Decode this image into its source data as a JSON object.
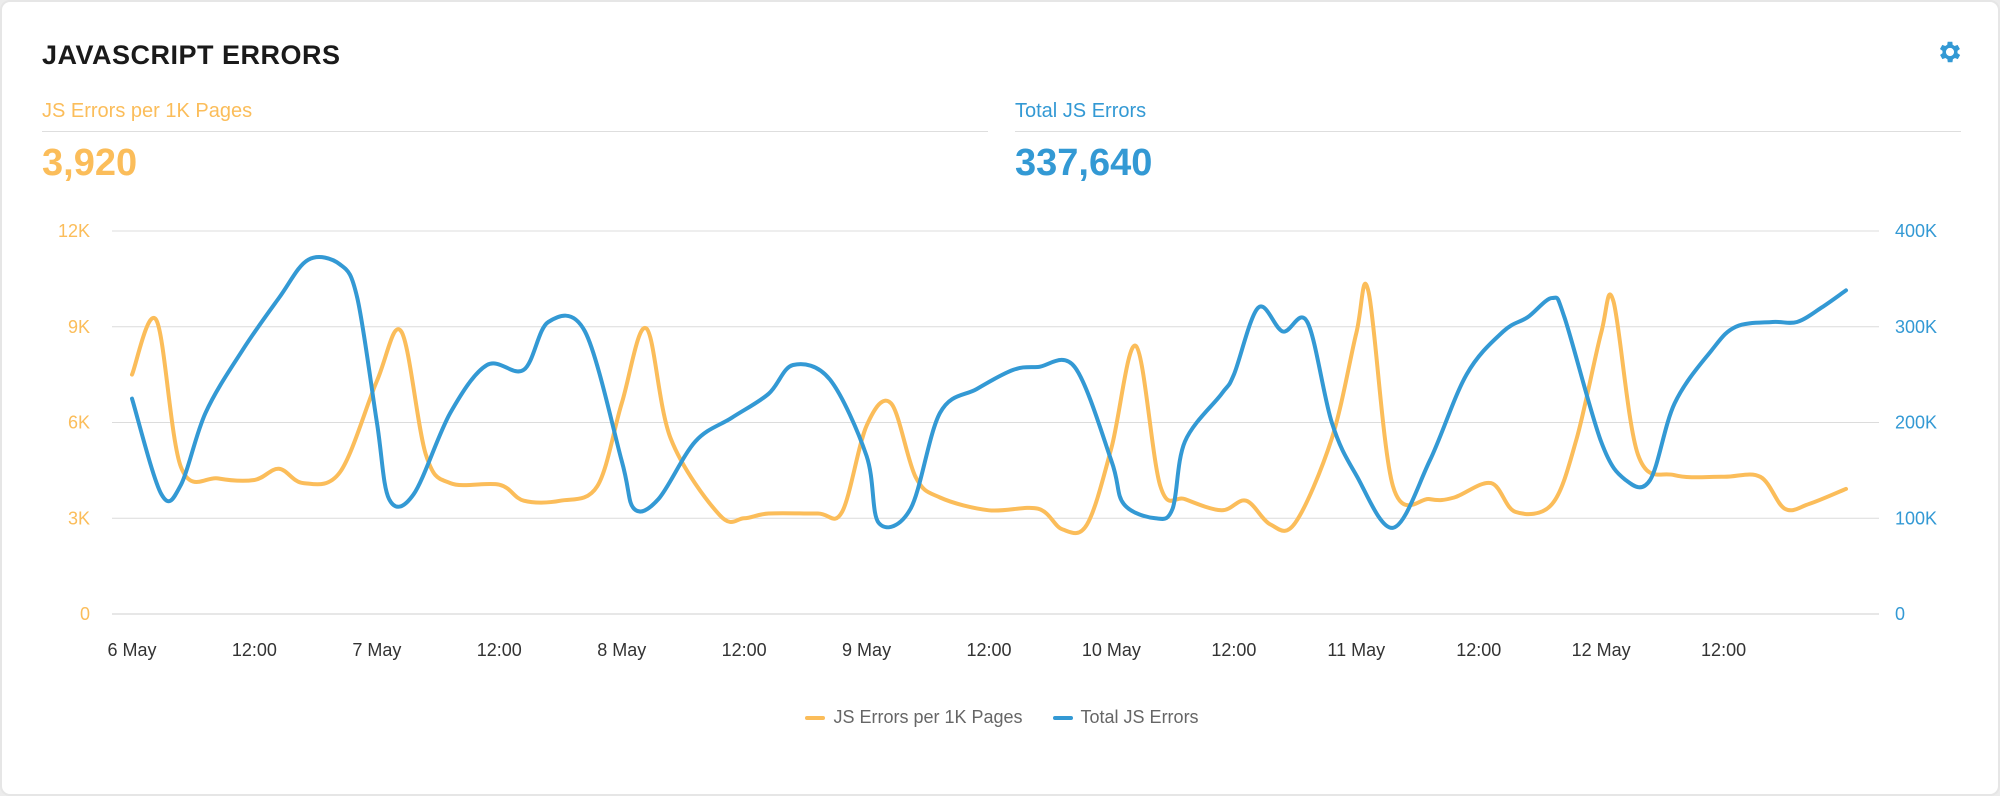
{
  "panel": {
    "title": "JAVASCRIPT ERRORS",
    "settings_icon": "gear-icon"
  },
  "metrics": [
    {
      "label": "JS Errors per 1K Pages",
      "value": "3,920",
      "color": "#fbbd5a"
    },
    {
      "label": "Total JS Errors",
      "value": "337,640",
      "color": "#3399d4"
    }
  ],
  "chart_data": {
    "type": "line",
    "x_ticks": [
      "6 May",
      "12:00",
      "7 May",
      "12:00",
      "8 May",
      "12:00",
      "9 May",
      "12:00",
      "10 May",
      "12:00",
      "11 May",
      "12:00",
      "12 May",
      "12:00"
    ],
    "x_range_days": [
      0,
      7
    ],
    "y_left": {
      "ticks": [
        "0",
        "3K",
        "6K",
        "9K",
        "12K"
      ],
      "ylim": [
        0,
        12000
      ],
      "color": "#fbbd5a"
    },
    "y_right": {
      "ticks": [
        "0",
        "100K",
        "200K",
        "300K",
        "400K"
      ],
      "ylim": [
        0,
        400000
      ],
      "color": "#3399d4"
    },
    "grid": true,
    "legend_position": "bottom",
    "series": [
      {
        "name": "JS Errors per 1K Pages",
        "axis": "left",
        "color": "#fbbd5a",
        "points": [
          [
            0,
            7500
          ],
          [
            0.1,
            9200
          ],
          [
            0.2,
            4600
          ],
          [
            0.35,
            4250
          ],
          [
            0.5,
            4200
          ],
          [
            0.6,
            4550
          ],
          [
            0.7,
            4100
          ],
          [
            0.85,
            4450
          ],
          [
            1.0,
            7300
          ],
          [
            1.1,
            8850
          ],
          [
            1.2,
            5000
          ],
          [
            1.3,
            4100
          ],
          [
            1.5,
            4050
          ],
          [
            1.6,
            3550
          ],
          [
            1.75,
            3550
          ],
          [
            1.9,
            4000
          ],
          [
            2.0,
            6600
          ],
          [
            2.1,
            8950
          ],
          [
            2.2,
            5500
          ],
          [
            2.4,
            3100
          ],
          [
            2.5,
            3000
          ],
          [
            2.6,
            3150
          ],
          [
            2.8,
            3150
          ],
          [
            2.9,
            3200
          ],
          [
            3.0,
            5900
          ],
          [
            3.1,
            6600
          ],
          [
            3.2,
            4300
          ],
          [
            3.3,
            3650
          ],
          [
            3.5,
            3250
          ],
          [
            3.7,
            3300
          ],
          [
            3.8,
            2650
          ],
          [
            3.9,
            2800
          ],
          [
            4.0,
            5200
          ],
          [
            4.1,
            8400
          ],
          [
            4.2,
            4000
          ],
          [
            4.3,
            3600
          ],
          [
            4.45,
            3250
          ],
          [
            4.55,
            3550
          ],
          [
            4.65,
            2800
          ],
          [
            4.75,
            2850
          ],
          [
            4.9,
            5500
          ],
          [
            5.0,
            8800
          ],
          [
            5.05,
            10100
          ],
          [
            5.15,
            4000
          ],
          [
            5.3,
            3600
          ],
          [
            5.4,
            3650
          ],
          [
            5.55,
            4100
          ],
          [
            5.65,
            3200
          ],
          [
            5.8,
            3450
          ],
          [
            5.9,
            5500
          ],
          [
            6.0,
            8800
          ],
          [
            6.05,
            9800
          ],
          [
            6.15,
            5000
          ],
          [
            6.3,
            4350
          ],
          [
            6.5,
            4300
          ],
          [
            6.65,
            4300
          ],
          [
            6.75,
            3300
          ],
          [
            6.85,
            3450
          ],
          [
            7.0,
            3920
          ]
        ]
      },
      {
        "name": "Total JS Errors",
        "axis": "right",
        "color": "#3399d4",
        "points": [
          [
            0,
            225000
          ],
          [
            0.12,
            125000
          ],
          [
            0.2,
            135000
          ],
          [
            0.3,
            210000
          ],
          [
            0.45,
            275000
          ],
          [
            0.6,
            330000
          ],
          [
            0.72,
            370000
          ],
          [
            0.85,
            365000
          ],
          [
            0.92,
            330000
          ],
          [
            1.0,
            200000
          ],
          [
            1.05,
            120000
          ],
          [
            1.15,
            125000
          ],
          [
            1.3,
            210000
          ],
          [
            1.45,
            260000
          ],
          [
            1.6,
            255000
          ],
          [
            1.7,
            305000
          ],
          [
            1.85,
            295000
          ],
          [
            2.0,
            160000
          ],
          [
            2.05,
            110000
          ],
          [
            2.15,
            120000
          ],
          [
            2.3,
            180000
          ],
          [
            2.45,
            205000
          ],
          [
            2.6,
            230000
          ],
          [
            2.7,
            260000
          ],
          [
            2.85,
            245000
          ],
          [
            3.0,
            165000
          ],
          [
            3.05,
            95000
          ],
          [
            3.18,
            110000
          ],
          [
            3.3,
            210000
          ],
          [
            3.45,
            235000
          ],
          [
            3.6,
            255000
          ],
          [
            3.7,
            258000
          ],
          [
            3.85,
            258000
          ],
          [
            4.0,
            160000
          ],
          [
            4.05,
            115000
          ],
          [
            4.18,
            100000
          ],
          [
            4.25,
            110000
          ],
          [
            4.3,
            180000
          ],
          [
            4.45,
            230000
          ],
          [
            4.5,
            250000
          ],
          [
            4.6,
            320000
          ],
          [
            4.7,
            295000
          ],
          [
            4.8,
            305000
          ],
          [
            4.9,
            200000
          ],
          [
            5.0,
            145000
          ],
          [
            5.15,
            90000
          ],
          [
            5.3,
            160000
          ],
          [
            5.45,
            250000
          ],
          [
            5.6,
            295000
          ],
          [
            5.7,
            310000
          ],
          [
            5.8,
            330000
          ],
          [
            5.85,
            310000
          ],
          [
            6.0,
            180000
          ],
          [
            6.1,
            140000
          ],
          [
            6.2,
            140000
          ],
          [
            6.3,
            220000
          ],
          [
            6.45,
            275000
          ],
          [
            6.55,
            300000
          ],
          [
            6.7,
            305000
          ],
          [
            6.8,
            305000
          ],
          [
            6.9,
            320000
          ],
          [
            7.0,
            338000
          ]
        ]
      }
    ]
  }
}
